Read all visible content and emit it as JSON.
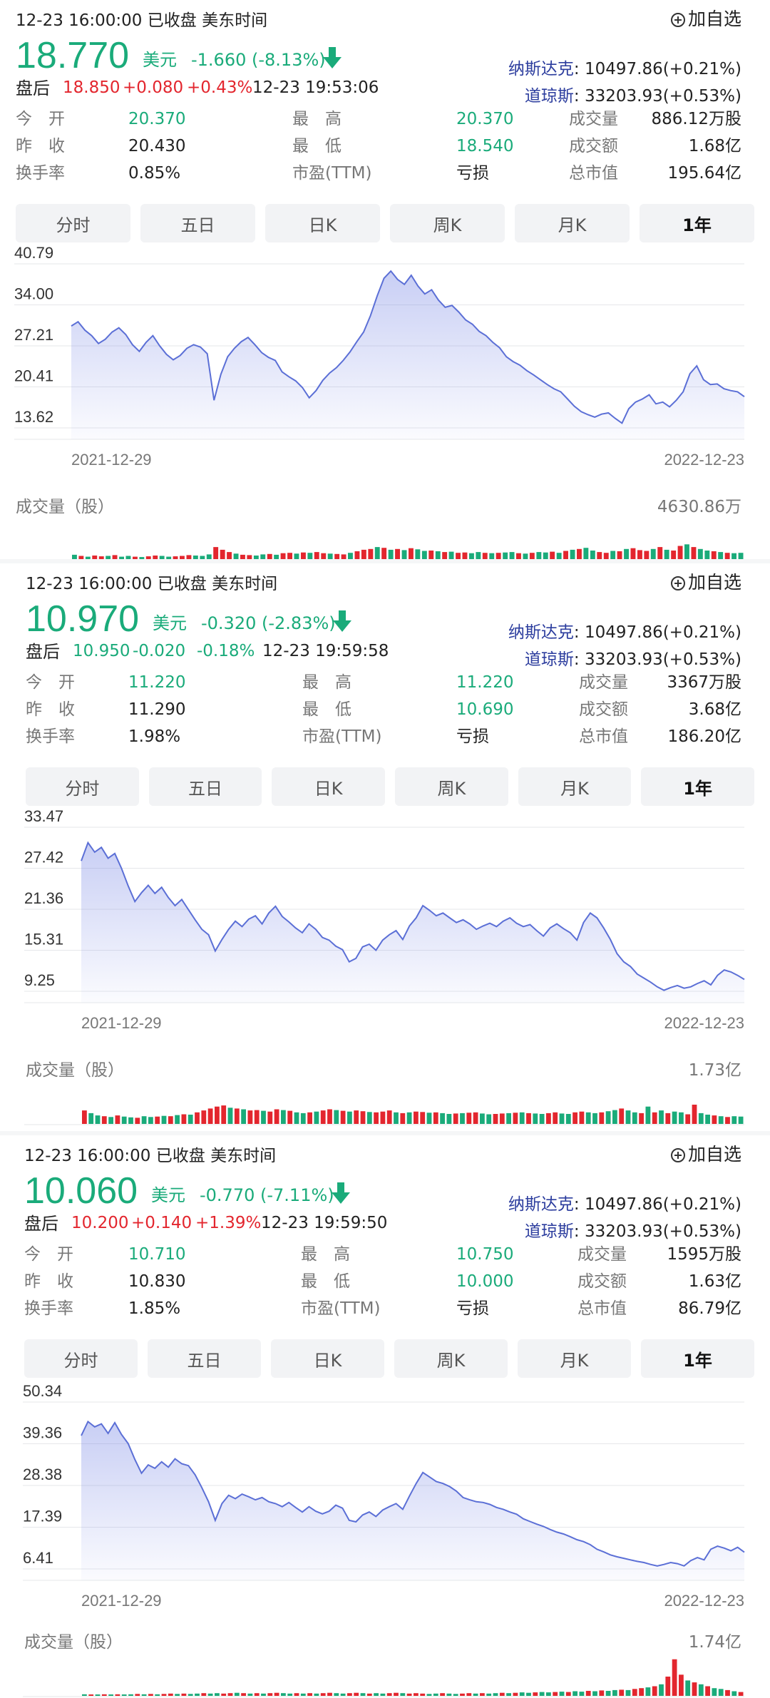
{
  "add_watchlist_label": "加自选",
  "tabs": [
    "分时",
    "五日",
    "日K",
    "周K",
    "月K",
    "1年"
  ],
  "active_tab_index": 5,
  "colors": {
    "up": "#e3262e",
    "down": "#1aab7a",
    "line": "#5b6fd6",
    "index": "#2c3d9e"
  },
  "panels": [
    {
      "status_line": "12-23 16:00:00  已收盘  美东时间",
      "price": "18.770",
      "currency": "美元",
      "change": "-1.660 (-8.13%)",
      "after_hours": {
        "label": "盘后",
        "price": "18.850",
        "change": "+0.080",
        "pct": "+0.43%",
        "time": "12-23 19:53:06"
      },
      "nasdaq": {
        "label": "纳斯达克",
        "value": ": 10497.86(+0.21%)"
      },
      "dow": {
        "label": "道琼斯",
        "value": ": 33203.93(+0.53%)"
      },
      "stats": [
        {
          "label": "今　开",
          "value": "20.370",
          "color": "down"
        },
        {
          "label": "最　高",
          "value": "20.370",
          "color": "down"
        },
        {
          "label": "成交量",
          "value": "886.12万股",
          "color": "none"
        },
        {
          "label": "昨　收",
          "value": "20.430",
          "color": "none"
        },
        {
          "label": "最　低",
          "value": "18.540",
          "color": "down"
        },
        {
          "label": "成交额",
          "value": "1.68亿",
          "color": "none"
        },
        {
          "label": "换手率",
          "value": "0.85%",
          "color": "none"
        },
        {
          "label": "市盈(TTM)",
          "value": "亏损",
          "color": "none"
        },
        {
          "label": "总市值",
          "value": "195.64亿",
          "color": "none"
        }
      ],
      "y_ticks": [
        "40.79",
        "34.00",
        "27.21",
        "20.41",
        "13.62"
      ],
      "y_range": [
        13.62,
        40.79
      ],
      "x_start": "2021-12-29",
      "x_end": "2022-12-23",
      "volume_label": "成交量（股）",
      "volume_max": "4630.86万",
      "series": [
        30.5,
        31.2,
        29.8,
        28.9,
        27.6,
        28.3,
        29.5,
        30.2,
        29.1,
        27.4,
        26.3,
        27.8,
        28.9,
        27.2,
        25.8,
        24.9,
        25.6,
        26.8,
        27.4,
        27.0,
        25.9,
        18.2,
        22.5,
        25.4,
        26.8,
        27.9,
        28.6,
        27.4,
        26.1,
        25.3,
        24.8,
        22.9,
        22.1,
        21.4,
        20.3,
        18.6,
        19.8,
        21.5,
        22.7,
        23.6,
        24.8,
        26.2,
        27.9,
        29.5,
        32.2,
        35.5,
        38.4,
        39.6,
        38.2,
        37.4,
        38.9,
        37.1,
        35.8,
        36.5,
        34.8,
        33.6,
        33.9,
        32.8,
        31.5,
        30.8,
        29.6,
        28.9,
        27.8,
        26.9,
        25.4,
        24.6,
        24.0,
        23.1,
        22.4,
        21.6,
        20.8,
        20.1,
        19.6,
        18.4,
        17.2,
        16.3,
        15.8,
        15.4,
        15.9,
        16.1,
        15.2,
        14.4,
        16.8,
        17.9,
        18.4,
        19.1,
        17.6,
        17.9,
        17.1,
        18.2,
        19.6,
        22.6,
        23.9,
        21.6,
        20.8,
        20.9,
        20.1,
        19.8,
        19.6,
        18.8
      ],
      "volumes": [
        0.15,
        0.12,
        0.1,
        0.13,
        0.11,
        0.12,
        0.14,
        0.1,
        0.12,
        0.1,
        0.09,
        0.11,
        0.13,
        0.12,
        0.1,
        0.11,
        0.12,
        0.14,
        0.13,
        0.12,
        0.16,
        0.35,
        0.28,
        0.22,
        0.18,
        0.15,
        0.14,
        0.13,
        0.16,
        0.17,
        0.15,
        0.19,
        0.2,
        0.18,
        0.21,
        0.2,
        0.22,
        0.19,
        0.18,
        0.17,
        0.16,
        0.2,
        0.24,
        0.28,
        0.3,
        0.35,
        0.33,
        0.28,
        0.3,
        0.27,
        0.32,
        0.29,
        0.25,
        0.26,
        0.24,
        0.22,
        0.23,
        0.2,
        0.21,
        0.19,
        0.22,
        0.2,
        0.19,
        0.2,
        0.21,
        0.22,
        0.19,
        0.18,
        0.2,
        0.22,
        0.21,
        0.23,
        0.2,
        0.25,
        0.28,
        0.3,
        0.33,
        0.26,
        0.22,
        0.2,
        0.25,
        0.24,
        0.3,
        0.32,
        0.27,
        0.25,
        0.3,
        0.35,
        0.28,
        0.26,
        0.38,
        0.42,
        0.35,
        0.3,
        0.26,
        0.24,
        0.22,
        0.2,
        0.19,
        0.2
      ],
      "volume_up": [
        0,
        1,
        0,
        1,
        1,
        0,
        1,
        0,
        0,
        1,
        0,
        1,
        1,
        0,
        0,
        1,
        1,
        1,
        0,
        0,
        0,
        1,
        1,
        1,
        0,
        1,
        1,
        0,
        0,
        1,
        0,
        1,
        1,
        0,
        1,
        0,
        1,
        1,
        0,
        1,
        1,
        0,
        1,
        1,
        1,
        0,
        1,
        0,
        1,
        0,
        1,
        0,
        0,
        1,
        0,
        1,
        0,
        1,
        1,
        0,
        0,
        1,
        0,
        1,
        0,
        0,
        1,
        0,
        1,
        0,
        0,
        1,
        0,
        1,
        0,
        1,
        0,
        0,
        1,
        1,
        0,
        1,
        0,
        1,
        1,
        1,
        0,
        1,
        0,
        1,
        1,
        0,
        1,
        0,
        0,
        1,
        0,
        1,
        0,
        0
      ]
    },
    {
      "status_line": "12-23 16:00:00  已收盘  美东时间",
      "price": "10.970",
      "currency": "美元",
      "change": "-0.320 (-2.83%)",
      "after_hours": {
        "label": "盘后",
        "price": "10.950",
        "change": "-0.020",
        "pct": "-0.18%",
        "time": "12-23 19:59:58"
      },
      "nasdaq": {
        "label": "纳斯达克",
        "value": ": 10497.86(+0.21%)"
      },
      "dow": {
        "label": "道琼斯",
        "value": ": 33203.93(+0.53%)"
      },
      "stats": [
        {
          "label": "今　开",
          "value": "11.220",
          "color": "down"
        },
        {
          "label": "最　高",
          "value": "11.220",
          "color": "down"
        },
        {
          "label": "成交量",
          "value": "3367万股",
          "color": "none"
        },
        {
          "label": "昨　收",
          "value": "11.290",
          "color": "none"
        },
        {
          "label": "最　低",
          "value": "10.690",
          "color": "down"
        },
        {
          "label": "成交额",
          "value": "3.68亿",
          "color": "none"
        },
        {
          "label": "换手率",
          "value": "1.98%",
          "color": "none"
        },
        {
          "label": "市盈(TTM)",
          "value": "亏损",
          "color": "none"
        },
        {
          "label": "总市值",
          "value": "186.20亿",
          "color": "none"
        }
      ],
      "y_ticks": [
        "33.47",
        "27.42",
        "21.36",
        "15.31",
        "9.25"
      ],
      "y_range": [
        9.25,
        33.47
      ],
      "x_start": "2021-12-29",
      "x_end": "2022-12-23",
      "volume_label": "成交量（股）",
      "volume_max": "1.73亿",
      "series": [
        28.5,
        31.2,
        29.8,
        30.5,
        28.9,
        29.6,
        27.4,
        24.8,
        22.5,
        23.8,
        24.9,
        23.7,
        24.6,
        23.1,
        21.9,
        22.8,
        21.3,
        19.8,
        18.4,
        17.6,
        15.2,
        16.9,
        18.4,
        19.6,
        18.8,
        19.9,
        20.4,
        19.2,
        20.8,
        21.8,
        20.3,
        19.5,
        18.6,
        17.9,
        19.2,
        18.4,
        17.2,
        16.8,
        15.9,
        15.4,
        13.6,
        14.1,
        15.8,
        16.2,
        15.3,
        16.8,
        17.6,
        18.2,
        16.9,
        18.9,
        20.1,
        21.9,
        21.2,
        20.4,
        20.8,
        20.1,
        19.4,
        19.8,
        19.2,
        18.4,
        18.9,
        19.3,
        18.8,
        19.6,
        20.1,
        19.3,
        18.8,
        19.1,
        18.2,
        17.4,
        18.6,
        19.2,
        18.5,
        17.9,
        16.8,
        19.4,
        20.8,
        20.1,
        18.6,
        16.9,
        14.8,
        13.6,
        12.9,
        11.8,
        11.2,
        10.6,
        9.9,
        9.4,
        9.8,
        10.1,
        9.7,
        9.9,
        10.4,
        10.8,
        10.2,
        11.6,
        12.4,
        12.1,
        11.6,
        11.0
      ],
      "volumes": [
        0.35,
        0.28,
        0.22,
        0.2,
        0.18,
        0.22,
        0.19,
        0.17,
        0.16,
        0.2,
        0.18,
        0.19,
        0.21,
        0.2,
        0.23,
        0.25,
        0.24,
        0.3,
        0.35,
        0.4,
        0.45,
        0.48,
        0.42,
        0.4,
        0.38,
        0.35,
        0.36,
        0.34,
        0.32,
        0.38,
        0.36,
        0.34,
        0.3,
        0.28,
        0.3,
        0.32,
        0.35,
        0.38,
        0.36,
        0.34,
        0.32,
        0.35,
        0.33,
        0.31,
        0.3,
        0.32,
        0.35,
        0.3,
        0.28,
        0.3,
        0.32,
        0.31,
        0.29,
        0.3,
        0.28,
        0.26,
        0.27,
        0.28,
        0.29,
        0.3,
        0.27,
        0.25,
        0.26,
        0.27,
        0.28,
        0.29,
        0.3,
        0.28,
        0.27,
        0.26,
        0.28,
        0.3,
        0.27,
        0.26,
        0.3,
        0.32,
        0.3,
        0.28,
        0.3,
        0.33,
        0.36,
        0.4,
        0.35,
        0.3,
        0.28,
        0.45,
        0.3,
        0.35,
        0.28,
        0.32,
        0.3,
        0.25,
        0.5,
        0.28,
        0.24,
        0.22,
        0.2,
        0.18,
        0.2,
        0.19
      ],
      "volume_up": [
        1,
        0,
        0,
        1,
        0,
        1,
        0,
        0,
        1,
        0,
        0,
        1,
        0,
        1,
        0,
        1,
        0,
        1,
        1,
        1,
        1,
        1,
        0,
        1,
        0,
        1,
        1,
        0,
        1,
        1,
        0,
        1,
        0,
        0,
        1,
        0,
        1,
        1,
        0,
        1,
        0,
        1,
        1,
        0,
        1,
        1,
        1,
        0,
        1,
        0,
        1,
        1,
        0,
        1,
        0,
        0,
        1,
        0,
        1,
        1,
        0,
        0,
        1,
        1,
        0,
        1,
        0,
        1,
        0,
        0,
        1,
        1,
        0,
        0,
        1,
        1,
        0,
        0,
        1,
        0,
        0,
        1,
        0,
        0,
        1,
        0,
        1,
        0,
        1,
        0,
        0,
        1,
        1,
        0,
        0,
        1,
        0,
        1,
        0,
        0
      ]
    },
    {
      "status_line": "12-23 16:00:00  已收盘  美东时间",
      "price": "10.060",
      "currency": "美元",
      "change": "-0.770 (-7.11%)",
      "after_hours": {
        "label": "盘后",
        "price": "10.200",
        "change": "+0.140",
        "pct": "+1.39%",
        "time": "12-23 19:59:50"
      },
      "nasdaq": {
        "label": "纳斯达克",
        "value": ": 10497.86(+0.21%)"
      },
      "dow": {
        "label": "道琼斯",
        "value": ": 33203.93(+0.53%)"
      },
      "stats": [
        {
          "label": "今　开",
          "value": "10.710",
          "color": "down"
        },
        {
          "label": "最　高",
          "value": "10.750",
          "color": "down"
        },
        {
          "label": "成交量",
          "value": "1595万股",
          "color": "none"
        },
        {
          "label": "昨　收",
          "value": "10.830",
          "color": "none"
        },
        {
          "label": "最　低",
          "value": "10.000",
          "color": "down"
        },
        {
          "label": "成交额",
          "value": "1.63亿",
          "color": "none"
        },
        {
          "label": "换手率",
          "value": "1.85%",
          "color": "none"
        },
        {
          "label": "市盈(TTM)",
          "value": "亏损",
          "color": "none"
        },
        {
          "label": "总市值",
          "value": "86.79亿",
          "color": "none"
        }
      ],
      "y_ticks": [
        "50.34",
        "39.36",
        "28.38",
        "17.39",
        "6.41"
      ],
      "y_range": [
        6.41,
        50.34
      ],
      "x_start": "2021-12-29",
      "x_end": "2022-12-23",
      "volume_label": "成交量（股）",
      "volume_max": "1.74亿",
      "series": [
        41.5,
        45.2,
        43.8,
        44.6,
        42.1,
        44.9,
        41.8,
        39.4,
        35.2,
        31.6,
        33.8,
        32.9,
        34.6,
        33.2,
        35.4,
        34.1,
        33.6,
        31.2,
        27.8,
        24.1,
        19.2,
        23.6,
        25.8,
        24.9,
        26.1,
        25.4,
        24.6,
        25.2,
        24.1,
        23.6,
        22.8,
        23.9,
        22.6,
        21.4,
        22.8,
        21.6,
        20.9,
        21.6,
        23.2,
        22.4,
        19.2,
        18.8,
        20.6,
        21.4,
        20.2,
        21.9,
        22.8,
        23.6,
        22.1,
        25.6,
        28.9,
        31.8,
        30.6,
        29.4,
        28.9,
        28.1,
        26.9,
        25.2,
        24.6,
        24.1,
        23.9,
        23.4,
        22.6,
        22.1,
        21.4,
        20.8,
        19.6,
        18.9,
        18.2,
        17.6,
        16.8,
        16.1,
        15.6,
        14.9,
        14.1,
        13.6,
        12.8,
        11.6,
        10.9,
        10.1,
        9.6,
        9.2,
        8.8,
        8.4,
        8.1,
        7.6,
        7.2,
        7.6,
        8.1,
        7.8,
        7.2,
        8.6,
        9.4,
        8.8,
        11.6,
        12.4,
        11.9,
        11.2,
        12.1,
        10.8
      ],
      "volumes": [
        0.04,
        0.03,
        0.03,
        0.04,
        0.03,
        0.04,
        0.03,
        0.04,
        0.05,
        0.04,
        0.05,
        0.04,
        0.05,
        0.06,
        0.05,
        0.06,
        0.05,
        0.06,
        0.07,
        0.06,
        0.07,
        0.06,
        0.07,
        0.08,
        0.07,
        0.06,
        0.07,
        0.06,
        0.07,
        0.08,
        0.07,
        0.06,
        0.07,
        0.06,
        0.07,
        0.06,
        0.07,
        0.08,
        0.07,
        0.06,
        0.07,
        0.08,
        0.07,
        0.06,
        0.07,
        0.06,
        0.07,
        0.08,
        0.07,
        0.06,
        0.07,
        0.06,
        0.05,
        0.06,
        0.07,
        0.06,
        0.05,
        0.06,
        0.07,
        0.06,
        0.07,
        0.06,
        0.07,
        0.08,
        0.07,
        0.08,
        0.09,
        0.08,
        0.09,
        0.1,
        0.09,
        0.1,
        0.11,
        0.1,
        0.12,
        0.11,
        0.13,
        0.12,
        0.14,
        0.13,
        0.15,
        0.16,
        0.15,
        0.18,
        0.2,
        0.22,
        0.25,
        0.3,
        0.5,
        0.95,
        0.55,
        0.4,
        0.35,
        0.3,
        0.25,
        0.2,
        0.18,
        0.15,
        0.12,
        0.1
      ],
      "volume_up": [
        0,
        1,
        0,
        1,
        0,
        1,
        0,
        0,
        1,
        0,
        1,
        0,
        1,
        1,
        0,
        1,
        0,
        0,
        1,
        0,
        0,
        1,
        1,
        0,
        1,
        0,
        1,
        0,
        1,
        1,
        0,
        0,
        1,
        0,
        1,
        0,
        1,
        1,
        0,
        0,
        1,
        1,
        0,
        1,
        0,
        0,
        1,
        1,
        0,
        1,
        1,
        1,
        0,
        0,
        1,
        0,
        0,
        1,
        1,
        0,
        1,
        0,
        0,
        1,
        0,
        1,
        0,
        0,
        1,
        0,
        0,
        1,
        0,
        1,
        0,
        0,
        1,
        0,
        1,
        0,
        0,
        1,
        0,
        1,
        1,
        0,
        1,
        0,
        1,
        1,
        1,
        0,
        1,
        0,
        1,
        0,
        0,
        1,
        0,
        1
      ]
    }
  ]
}
